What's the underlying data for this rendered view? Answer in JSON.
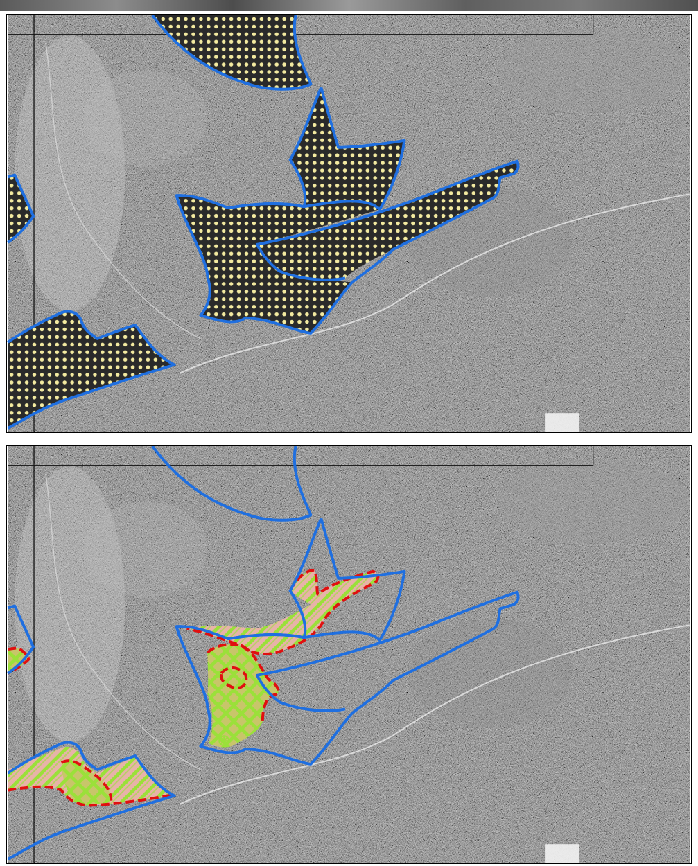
{
  "panels": [
    {
      "id": "top",
      "layers": [
        "aerial-photo",
        "boundary-lines",
        "dotted-zones",
        "blue-outline"
      ]
    },
    {
      "id": "bottom",
      "layers": [
        "aerial-photo",
        "boundary-lines",
        "blue-outline",
        "hatched-zones",
        "red-dashed-outline",
        "marker"
      ]
    }
  ],
  "colors": {
    "zone_outline": "#1f6fe0",
    "dot_fill": "#f3eaa0",
    "hatch_green": "#9be03a",
    "hatch_pink": "#e7b3a8",
    "dashed_outline": "#e01010",
    "boundary": "#111111",
    "photo_base": "#5a5a5a"
  }
}
